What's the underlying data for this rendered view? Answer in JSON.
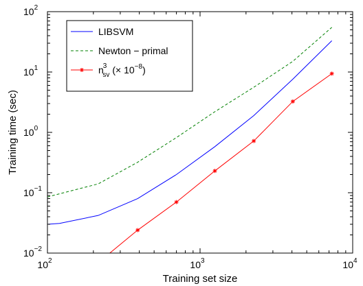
{
  "chart_data": {
    "type": "line",
    "title": "",
    "xlabel": "Training set size",
    "ylabel": "Training time (sec)",
    "xscale": "log",
    "yscale": "log",
    "xlim": [
      100,
      10000
    ],
    "ylim": [
      0.01,
      100
    ],
    "grid": false,
    "legend_position": "top-left",
    "x_ticks": [
      {
        "base": "10",
        "exp": "2",
        "value": 100
      },
      {
        "base": "10",
        "exp": "3",
        "value": 1000
      },
      {
        "base": "10",
        "exp": "4",
        "value": 10000
      }
    ],
    "y_ticks": [
      {
        "base": "10",
        "exp": "−2",
        "value": 0.01
      },
      {
        "base": "10",
        "exp": "−1",
        "value": 0.1
      },
      {
        "base": "10",
        "exp": "0",
        "value": 1
      },
      {
        "base": "10",
        "exp": "1",
        "value": 10
      },
      {
        "base": "10",
        "exp": "2",
        "value": 100
      }
    ],
    "series": [
      {
        "name": "LIBSVM",
        "color": "#0000ff",
        "style": "solid",
        "marker": "none",
        "x": [
          100,
          120,
          215,
          390,
          700,
          1250,
          2250,
          4050,
          7300
        ],
        "y": [
          0.03,
          0.031,
          0.042,
          0.08,
          0.2,
          0.58,
          1.9,
          7.6,
          33
        ]
      },
      {
        "name": "Newton − primal",
        "color": "#008000",
        "style": "dashed",
        "marker": "none",
        "x": [
          100,
          120,
          215,
          390,
          700,
          1250,
          2250,
          4050,
          7300
        ],
        "y": [
          0.085,
          0.096,
          0.14,
          0.32,
          0.82,
          2.2,
          5.6,
          15,
          55
        ]
      },
      {
        "name_parts": {
          "n": "n",
          "sup": "3",
          "sub": "sv",
          "mult": "(× 10",
          "exp": "−8",
          "close": ")"
        },
        "color": "#ff0000",
        "style": "solid",
        "marker": "star",
        "x": [
          250,
          390,
          700,
          1250,
          2250,
          4050,
          7300
        ],
        "y": [
          0.0095,
          0.024,
          0.07,
          0.23,
          0.72,
          3.25,
          9.4
        ],
        "marker_from_index": 1
      }
    ]
  }
}
